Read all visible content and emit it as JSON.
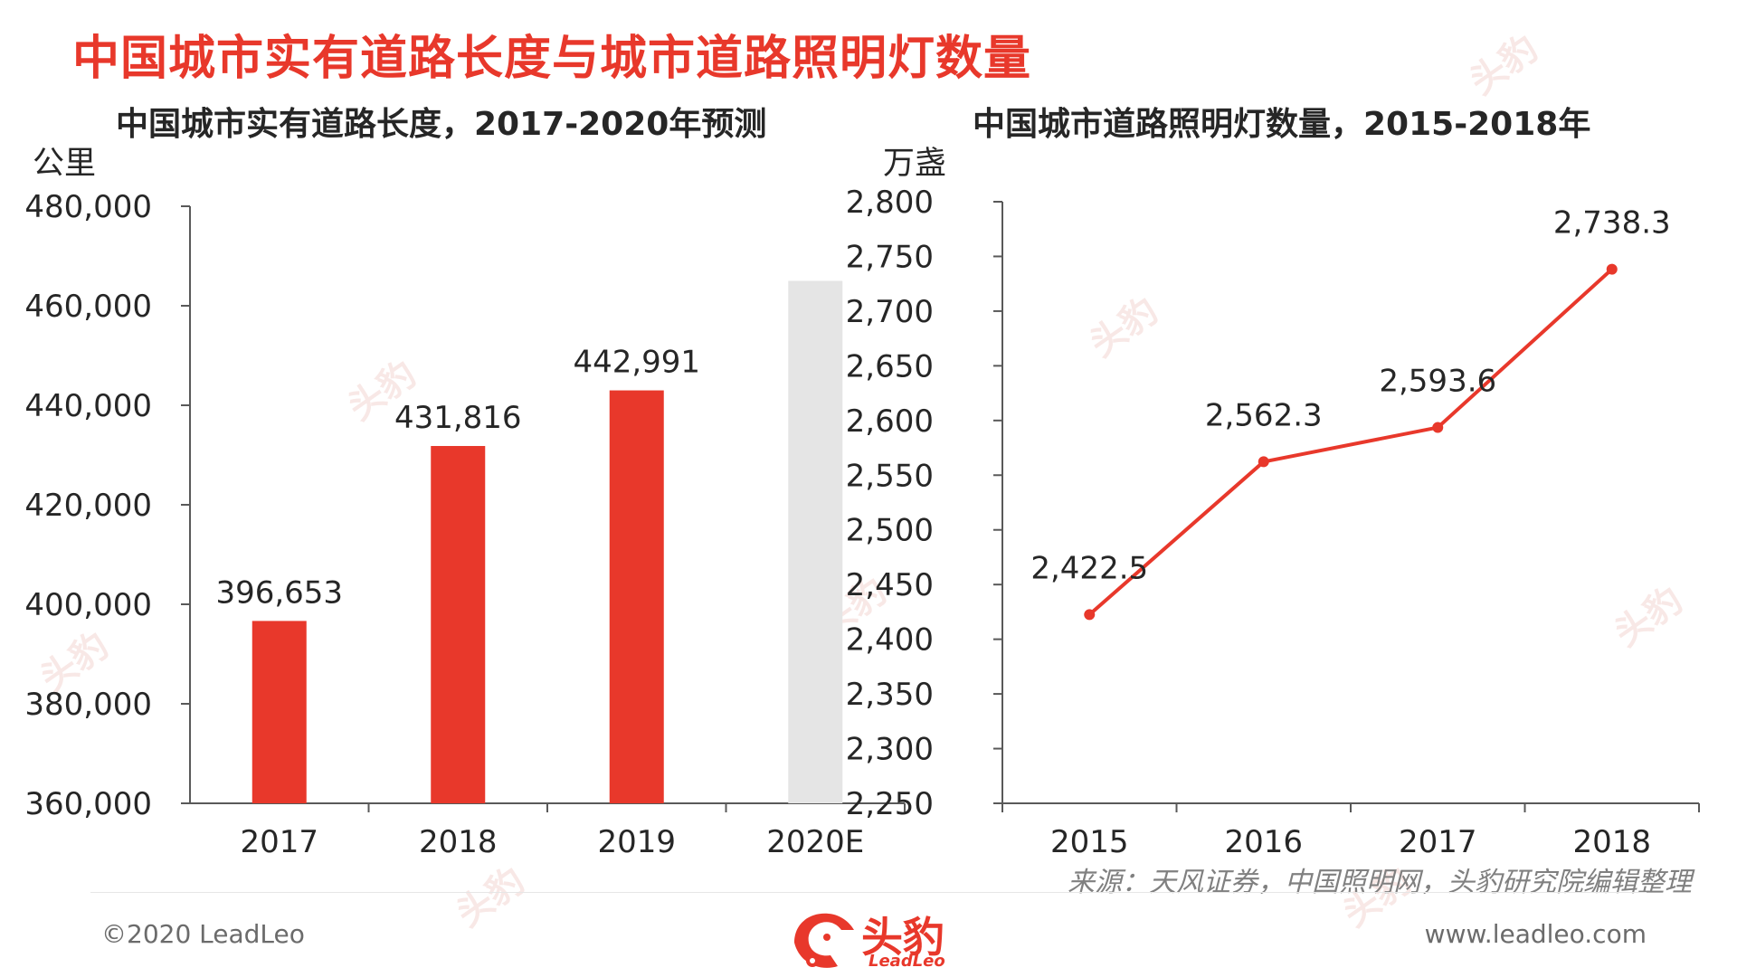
{
  "page": {
    "title": "中国城市实有道路长度与城市道路照明灯数量",
    "source": "来源：天风证券，中国照明网，头豹研究院编辑整理",
    "copyright": "©2020 LeadLeo",
    "website": "www.leadleo.com",
    "logo_cn": "头豹",
    "logo_en": "LeadLeo",
    "watermark_text": "头豹",
    "colors": {
      "accent": "#e8382b",
      "forecast_bar": "#e5e5e5",
      "text": "#262626",
      "axis": "#595959"
    }
  },
  "chart_data": [
    {
      "type": "bar",
      "title": "中国城市实有道路长度，2017-2020年预测",
      "ylabel": "公里",
      "categories": [
        "2017",
        "2018",
        "2019",
        "2020E"
      ],
      "values": [
        396653,
        431816,
        442991,
        465000
      ],
      "data_labels": [
        "396,653",
        "431,816",
        "442,991",
        ""
      ],
      "forecast_index": 3,
      "ylim": [
        360000,
        480000
      ],
      "yticks": [
        360000,
        380000,
        400000,
        420000,
        440000,
        460000,
        480000
      ],
      "ytick_labels": [
        "360,000",
        "380,000",
        "400,000",
        "420,000",
        "440,000",
        "460,000",
        "480,000"
      ],
      "grid": false,
      "legend": "none"
    },
    {
      "type": "line",
      "title": "中国城市道路照明灯数量，2015-2018年",
      "ylabel": "万盏",
      "categories": [
        "2015",
        "2016",
        "2017",
        "2018"
      ],
      "values": [
        2422.5,
        2562.3,
        2593.6,
        2738.3
      ],
      "data_labels": [
        "2,422.5",
        "2,562.3",
        "2,593.6",
        "2,738.3"
      ],
      "ylim": [
        2250,
        2800
      ],
      "yticks": [
        2250,
        2300,
        2350,
        2400,
        2450,
        2500,
        2550,
        2600,
        2650,
        2700,
        2750,
        2800
      ],
      "ytick_labels": [
        "2,250",
        "2,300",
        "2,350",
        "2,400",
        "2,450",
        "2,500",
        "2,550",
        "2,600",
        "2,650",
        "2,700",
        "2,750",
        "2,800"
      ],
      "grid": false,
      "legend": "none"
    }
  ]
}
